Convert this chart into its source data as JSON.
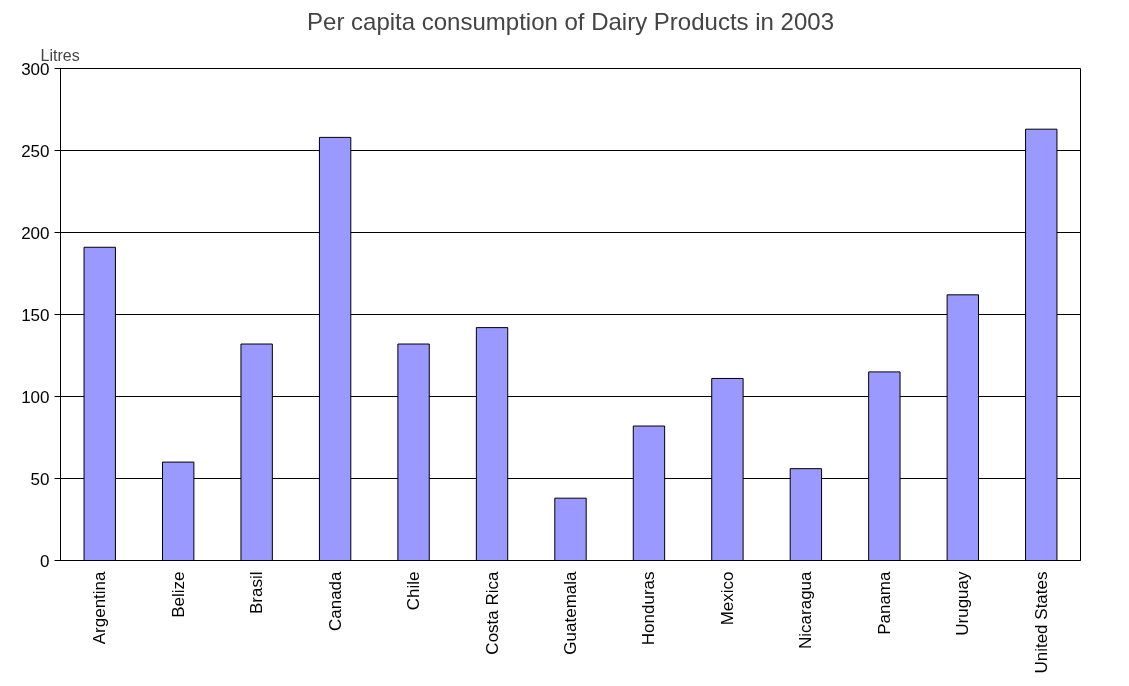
{
  "chart_data": {
    "type": "bar",
    "title": "Per capita consumption of Dairy Products in 2003",
    "ylabel": "Litres",
    "categories": [
      "Argentina",
      "Belize",
      "Brasil",
      "Canada",
      "Chile",
      "Costa Rica",
      "Guatemala",
      "Honduras",
      "Mexico",
      "Nicaragua",
      "Panama",
      "Uruguay",
      "United States"
    ],
    "values": [
      191,
      60,
      132,
      258,
      132,
      142,
      38,
      82,
      111,
      56,
      115,
      162,
      263
    ],
    "color": "#9999ff",
    "ylim": [
      0,
      300
    ],
    "yticks": [
      0,
      50,
      100,
      150,
      200,
      250,
      300
    ],
    "grid": "y"
  }
}
